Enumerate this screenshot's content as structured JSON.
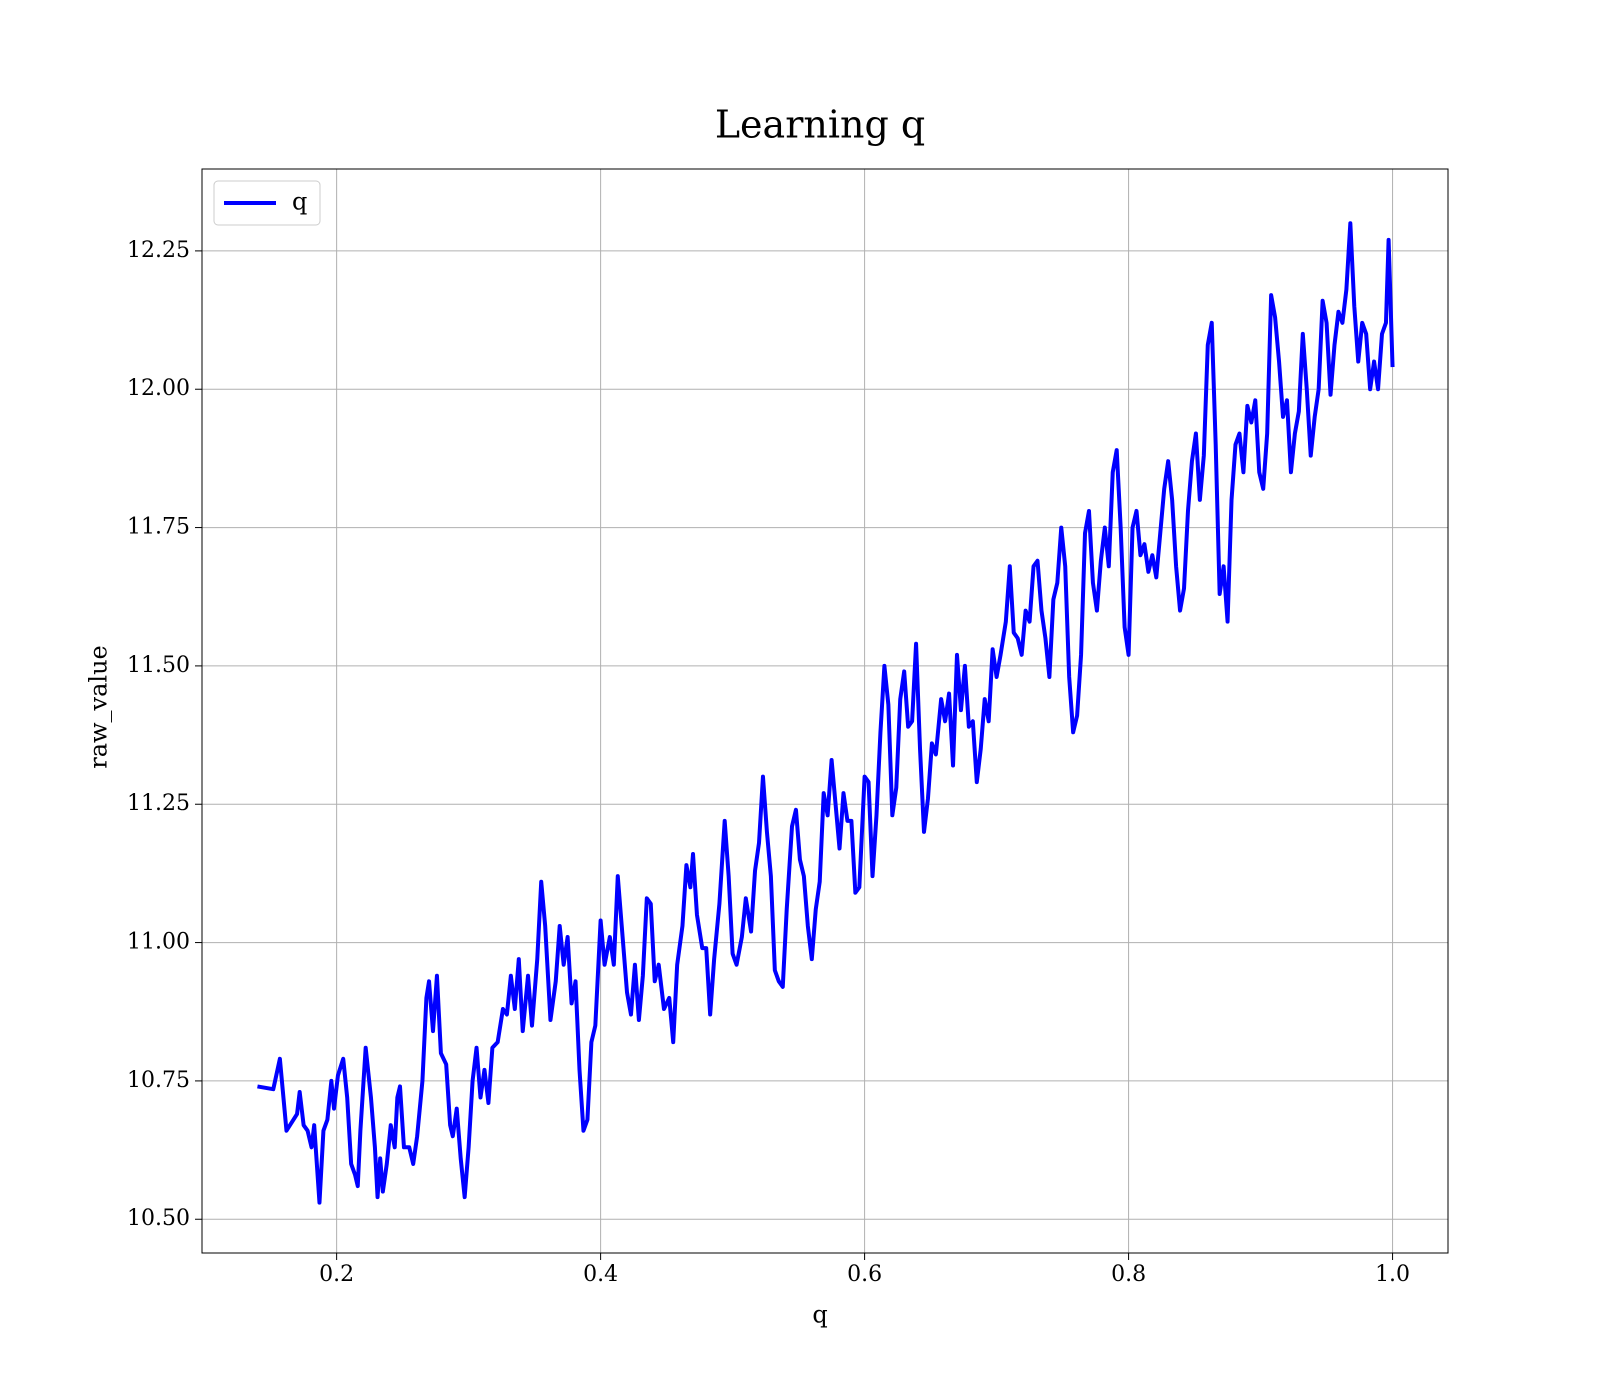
{
  "chart_data": {
    "type": "line",
    "title": "Learning q",
    "xlabel": "q",
    "ylabel": "raw_value",
    "xlim": [
      0.098,
      1.042
    ],
    "ylim": [
      10.439,
      12.398
    ],
    "xticks": [
      0.2,
      0.4,
      0.6,
      0.8,
      {
        "value": 1.0,
        "label": "1.0"
      }
    ],
    "yticks": [
      {
        "value": 10.5,
        "label": "10.50"
      },
      10.75,
      {
        "value": 11.0,
        "label": "11.00"
      },
      11.25,
      {
        "value": 11.5,
        "label": "11.50"
      },
      11.75,
      {
        "value": 12.0,
        "label": "12.00"
      },
      12.25
    ],
    "grid": true,
    "legend": "upper left",
    "series": [
      {
        "name": "q",
        "color": "#0000ff",
        "x": [
          0.14,
          0.152,
          0.157,
          0.162,
          0.17,
          0.172,
          0.175,
          0.178,
          0.181,
          0.183,
          0.187,
          0.19,
          0.193,
          0.196,
          0.198,
          0.201,
          0.205,
          0.208,
          0.211,
          0.214,
          0.216,
          0.218,
          0.222,
          0.226,
          0.229,
          0.231,
          0.233,
          0.235,
          0.238,
          0.241,
          0.244,
          0.246,
          0.248,
          0.251,
          0.255,
          0.258,
          0.261,
          0.265,
          0.268,
          0.27,
          0.273,
          0.276,
          0.279,
          0.283,
          0.286,
          0.288,
          0.291,
          0.294,
          0.297,
          0.3,
          0.303,
          0.306,
          0.309,
          0.312,
          0.315,
          0.318,
          0.322,
          0.326,
          0.329,
          0.332,
          0.335,
          0.338,
          0.341,
          0.345,
          0.348,
          0.352,
          0.355,
          0.358,
          0.362,
          0.366,
          0.369,
          0.372,
          0.375,
          0.378,
          0.381,
          0.384,
          0.387,
          0.39,
          0.393,
          0.396,
          0.4,
          0.403,
          0.407,
          0.41,
          0.413,
          0.416,
          0.42,
          0.423,
          0.426,
          0.429,
          0.432,
          0.435,
          0.438,
          0.441,
          0.444,
          0.448,
          0.452,
          0.455,
          0.458,
          0.462,
          0.465,
          0.468,
          0.47,
          0.473,
          0.477,
          0.48,
          0.483,
          0.486,
          0.49,
          0.494,
          0.497,
          0.5,
          0.503,
          0.507,
          0.51,
          0.514,
          0.517,
          0.52,
          0.523,
          0.526,
          0.529,
          0.532,
          0.535,
          0.538,
          0.541,
          0.545,
          0.548,
          0.551,
          0.554,
          0.557,
          0.56,
          0.563,
          0.566,
          0.569,
          0.572,
          0.575,
          0.578,
          0.581,
          0.584,
          0.587,
          0.59,
          0.593,
          0.596,
          0.6,
          0.603,
          0.606,
          0.609,
          0.612,
          0.615,
          0.618,
          0.621,
          0.624,
          0.627,
          0.63,
          0.633,
          0.636,
          0.639,
          0.642,
          0.645,
          0.648,
          0.651,
          0.654,
          0.658,
          0.661,
          0.664,
          0.667,
          0.67,
          0.673,
          0.676,
          0.679,
          0.682,
          0.685,
          0.688,
          0.691,
          0.694,
          0.697,
          0.7,
          0.703,
          0.707,
          0.71,
          0.713,
          0.716,
          0.719,
          0.722,
          0.725,
          0.728,
          0.731,
          0.734,
          0.737,
          0.74,
          0.743,
          0.746,
          0.749,
          0.752,
          0.755,
          0.758,
          0.761,
          0.764,
          0.767,
          0.77,
          0.773,
          0.776,
          0.779,
          0.782,
          0.785,
          0.788,
          0.791,
          0.794,
          0.797,
          0.8,
          0.803,
          0.806,
          0.809,
          0.812,
          0.815,
          0.818,
          0.821,
          0.824,
          0.827,
          0.83,
          0.833,
          0.836,
          0.839,
          0.842,
          0.845,
          0.848,
          0.851,
          0.854,
          0.857,
          0.86,
          0.863,
          0.866,
          0.869,
          0.872,
          0.875,
          0.878,
          0.881,
          0.884,
          0.887,
          0.89,
          0.893,
          0.896,
          0.899,
          0.902,
          0.905,
          0.908,
          0.911,
          0.914,
          0.917,
          0.92,
          0.923,
          0.926,
          0.929,
          0.932,
          0.935,
          0.938,
          0.941,
          0.944,
          0.947,
          0.95,
          0.953,
          0.956,
          0.959,
          0.962,
          0.965,
          0.968,
          0.971,
          0.974,
          0.977,
          0.98,
          0.983,
          0.986,
          0.989,
          0.992,
          0.995,
          0.997,
          1.0
        ],
        "values": [
          10.74,
          10.735,
          10.79,
          10.66,
          10.69,
          10.73,
          10.67,
          10.66,
          10.63,
          10.67,
          10.53,
          10.66,
          10.68,
          10.75,
          10.7,
          10.76,
          10.79,
          10.72,
          10.6,
          10.58,
          10.56,
          10.66,
          10.81,
          10.72,
          10.63,
          10.54,
          10.61,
          10.55,
          10.6,
          10.67,
          10.63,
          10.72,
          10.74,
          10.63,
          10.63,
          10.6,
          10.65,
          10.75,
          10.9,
          10.93,
          10.84,
          10.94,
          10.8,
          10.78,
          10.67,
          10.65,
          10.7,
          10.61,
          10.54,
          10.63,
          10.75,
          10.81,
          10.72,
          10.77,
          10.71,
          10.81,
          10.82,
          10.88,
          10.87,
          10.94,
          10.88,
          10.97,
          10.84,
          10.94,
          10.85,
          10.97,
          11.11,
          11.03,
          10.86,
          10.93,
          11.03,
          10.96,
          11.01,
          10.89,
          10.93,
          10.77,
          10.66,
          10.68,
          10.82,
          10.85,
          11.04,
          10.96,
          11.01,
          10.96,
          11.12,
          11.03,
          10.91,
          10.87,
          10.96,
          10.86,
          10.94,
          11.08,
          11.07,
          10.93,
          10.96,
          10.88,
          10.9,
          10.82,
          10.96,
          11.03,
          11.14,
          11.1,
          11.16,
          11.05,
          10.99,
          10.99,
          10.87,
          10.97,
          11.07,
          11.22,
          11.12,
          10.98,
          10.96,
          11.01,
          11.08,
          11.02,
          11.13,
          11.18,
          11.3,
          11.2,
          11.12,
          10.95,
          10.93,
          10.92,
          11.06,
          11.21,
          11.24,
          11.15,
          11.12,
          11.03,
          10.97,
          11.06,
          11.11,
          11.27,
          11.23,
          11.33,
          11.25,
          11.17,
          11.27,
          11.22,
          11.22,
          11.09,
          11.1,
          11.3,
          11.29,
          11.12,
          11.23,
          11.38,
          11.5,
          11.43,
          11.23,
          11.28,
          11.44,
          11.49,
          11.39,
          11.4,
          11.54,
          11.35,
          11.2,
          11.26,
          11.36,
          11.34,
          11.44,
          11.4,
          11.45,
          11.32,
          11.52,
          11.42,
          11.5,
          11.39,
          11.4,
          11.29,
          11.35,
          11.44,
          11.4,
          11.53,
          11.48,
          11.52,
          11.58,
          11.68,
          11.56,
          11.55,
          11.52,
          11.6,
          11.58,
          11.68,
          11.69,
          11.6,
          11.55,
          11.48,
          11.62,
          11.65,
          11.75,
          11.68,
          11.48,
          11.38,
          11.41,
          11.52,
          11.74,
          11.78,
          11.65,
          11.6,
          11.69,
          11.75,
          11.68,
          11.85,
          11.89,
          11.75,
          11.57,
          11.52,
          11.75,
          11.78,
          11.7,
          11.72,
          11.67,
          11.7,
          11.66,
          11.74,
          11.82,
          11.87,
          11.8,
          11.68,
          11.6,
          11.64,
          11.78,
          11.87,
          11.92,
          11.8,
          11.88,
          12.08,
          12.12,
          11.9,
          11.63,
          11.68,
          11.58,
          11.8,
          11.9,
          11.92,
          11.85,
          11.97,
          11.94,
          11.98,
          11.85,
          11.82,
          11.92,
          12.17,
          12.13,
          12.05,
          11.95,
          11.98,
          11.85,
          11.92,
          11.96,
          12.1,
          12.0,
          11.88,
          11.95,
          12.0,
          12.16,
          12.12,
          11.99,
          12.08,
          12.14,
          12.12,
          12.18,
          12.3,
          12.15,
          12.05,
          12.12,
          12.1,
          12.0,
          12.05,
          12.0,
          12.1,
          12.12,
          12.27,
          12.04
        ]
      }
    ]
  }
}
